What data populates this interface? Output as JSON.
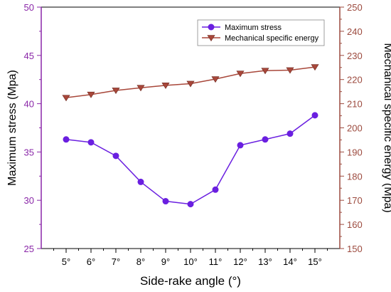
{
  "chart_data": {
    "type": "line",
    "xlabel": "Side-rake angle (°)",
    "categories": [
      "5°",
      "6°",
      "7°",
      "8°",
      "9°",
      "10°",
      "11°",
      "12°",
      "13°",
      "14°",
      "15°"
    ],
    "left_axis": {
      "label": "Maximum stress (Mpa)",
      "ylim": [
        25,
        50
      ],
      "ticks": [
        "25",
        "30",
        "35",
        "40",
        "45",
        "50"
      ],
      "color": "#8a27a8"
    },
    "right_axis": {
      "label": "Mechanical specific energy (Mpa)",
      "ylim": [
        150,
        250
      ],
      "ticks": [
        "150",
        "160",
        "170",
        "180",
        "190",
        "200",
        "210",
        "220",
        "230",
        "240",
        "250"
      ],
      "color": "#9c4a3e"
    },
    "series": [
      {
        "name": "Maximum stress",
        "axis": "left",
        "marker": "circle",
        "color": "#6a1fe0",
        "values": [
          36.3,
          36.0,
          34.6,
          31.9,
          29.9,
          29.6,
          31.1,
          35.7,
          36.3,
          36.9,
          38.8
        ]
      },
      {
        "name": "Mechanical specific energy",
        "axis": "right",
        "marker": "triangle-down",
        "color": "#a8473a",
        "values": [
          212.5,
          213.8,
          215.5,
          216.6,
          217.6,
          218.3,
          220.2,
          222.5,
          223.7,
          223.9,
          225.2
        ]
      }
    ],
    "legend_position": "top-right",
    "grid": false
  }
}
